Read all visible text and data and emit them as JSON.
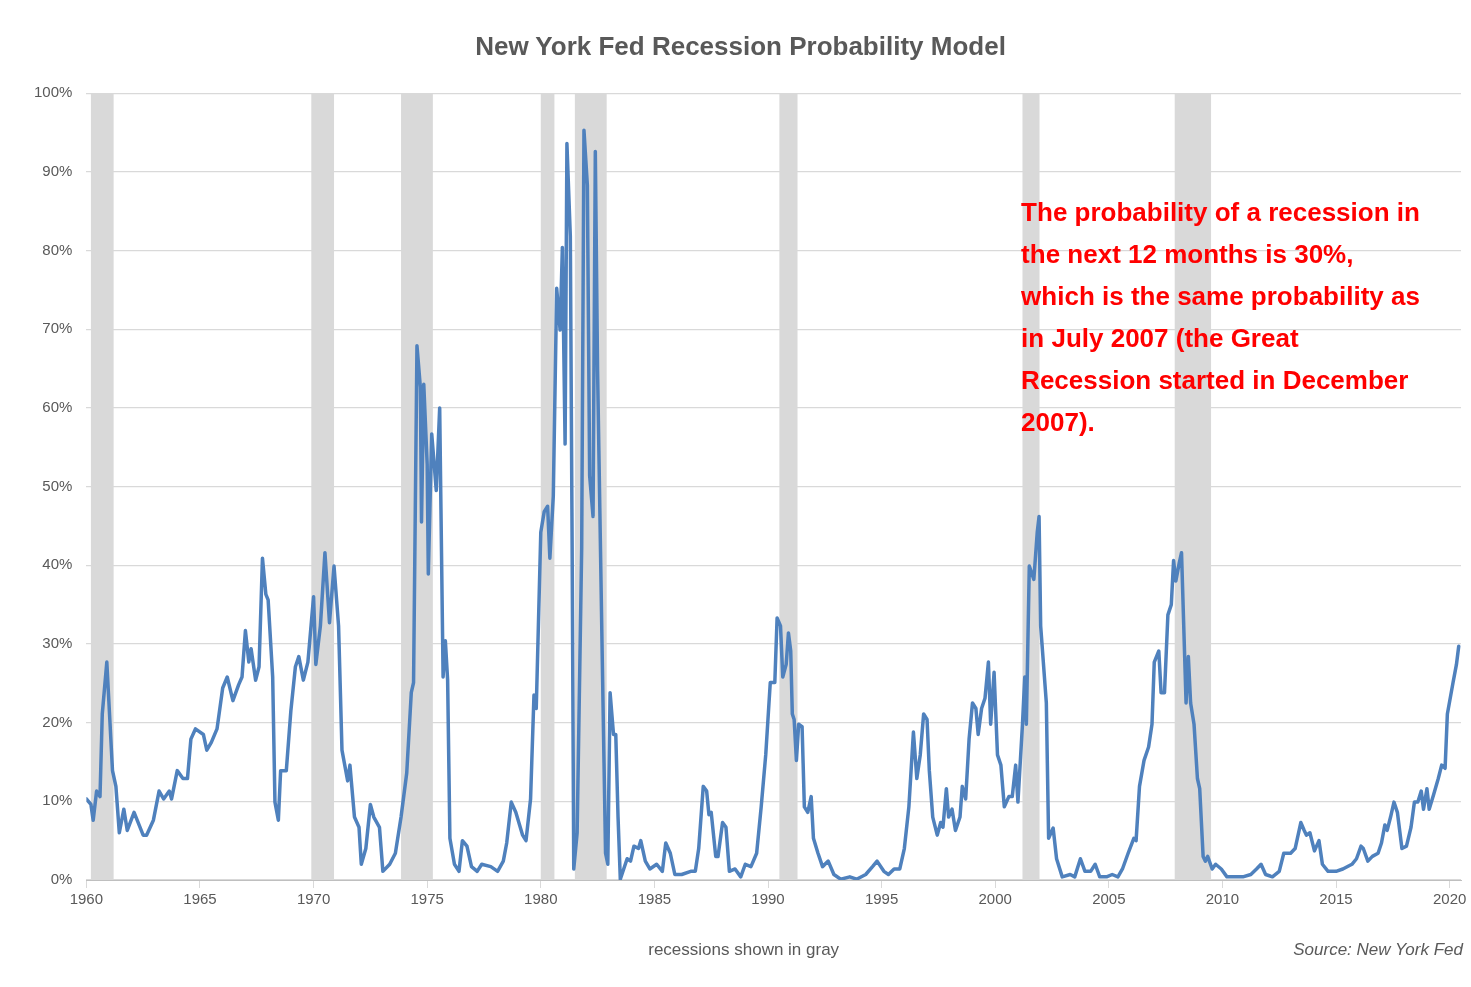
{
  "chart_data": {
    "type": "line",
    "title": "New York Fed Recession Probability Model",
    "xlim": [
      1960,
      2020.5
    ],
    "xticks": [
      1960,
      1965,
      1970,
      1975,
      1980,
      1985,
      1990,
      1995,
      2000,
      2005,
      2010,
      2015,
      2020
    ],
    "ylim": [
      0,
      100
    ],
    "yticks": [
      {
        "value": 0,
        "label": "0%"
      },
      {
        "value": 10,
        "label": "10%"
      },
      {
        "value": 20,
        "label": "20%"
      },
      {
        "value": 30,
        "label": "30%"
      },
      {
        "value": 40,
        "label": "40%"
      },
      {
        "value": 50,
        "label": "50%"
      },
      {
        "value": 60,
        "label": "60%"
      },
      {
        "value": 70,
        "label": "70%"
      },
      {
        "value": 80,
        "label": "80%"
      },
      {
        "value": 90,
        "label": "90%"
      },
      {
        "value": 100,
        "label": "100%"
      }
    ],
    "grid": "y",
    "legend": false,
    "bands": [
      {
        "axis": "x",
        "from": 1960.2,
        "to": 1961.2,
        "color": "#d9d9d9"
      },
      {
        "axis": "x",
        "from": 1969.9,
        "to": 1970.9,
        "color": "#d9d9d9"
      },
      {
        "axis": "x",
        "from": 1973.85,
        "to": 1975.25,
        "color": "#d9d9d9"
      },
      {
        "axis": "x",
        "from": 1980.0,
        "to": 1980.6,
        "color": "#d9d9d9"
      },
      {
        "axis": "x",
        "from": 1981.5,
        "to": 1982.9,
        "color": "#d9d9d9"
      },
      {
        "axis": "x",
        "from": 1990.5,
        "to": 1991.3,
        "color": "#d9d9d9"
      },
      {
        "axis": "x",
        "from": 2001.2,
        "to": 2001.95,
        "color": "#d9d9d9"
      },
      {
        "axis": "x",
        "from": 2007.9,
        "to": 2009.5,
        "color": "#d9d9d9"
      }
    ],
    "annotations": [
      "The probability of a recession in the next 12 months is 30%, which is the same probability as in July 2007 (the Great Recession started in December 2007).",
      "recessions shown in gray",
      "Source: New York Fed"
    ],
    "series": [
      {
        "color": "#4f81bd",
        "x": [
          1960.0,
          1960.2,
          1960.3,
          1960.45,
          1960.6,
          1960.7,
          1960.9,
          1961.15,
          1961.3,
          1961.45,
          1961.65,
          1961.8,
          1962.1,
          1962.5,
          1962.65,
          1962.95,
          1963.2,
          1963.4,
          1963.65,
          1963.75,
          1964.0,
          1964.25,
          1964.45,
          1964.6,
          1964.8,
          1965.15,
          1965.3,
          1965.5,
          1965.75,
          1966.0,
          1966.2,
          1966.45,
          1966.7,
          1966.85,
          1967.0,
          1967.15,
          1967.25,
          1967.45,
          1967.6,
          1967.75,
          1967.9,
          1968.0,
          1968.2,
          1968.3,
          1968.45,
          1968.55,
          1968.8,
          1969.0,
          1969.2,
          1969.35,
          1969.55,
          1969.75,
          1970.0,
          1970.1,
          1970.3,
          1970.5,
          1970.7,
          1970.9,
          1971.1,
          1971.25,
          1971.5,
          1971.6,
          1971.8,
          1972.0,
          1972.1,
          1972.3,
          1972.5,
          1972.65,
          1972.9,
          1973.05,
          1973.35,
          1973.6,
          1973.85,
          1974.1,
          1974.3,
          1974.4,
          1974.55,
          1974.7,
          1974.75,
          1974.85,
          1975.0,
          1975.05,
          1975.2,
          1975.4,
          1975.55,
          1975.7,
          1975.8,
          1975.9,
          1976.0,
          1976.2,
          1976.4,
          1976.55,
          1976.75,
          1976.95,
          1977.2,
          1977.4,
          1977.8,
          1978.1,
          1978.35,
          1978.5,
          1978.7,
          1978.9,
          1979.2,
          1979.35,
          1979.55,
          1979.7,
          1979.8,
          1980.0,
          1980.15,
          1980.3,
          1980.4,
          1980.55,
          1980.7,
          1980.85,
          1980.95,
          1981.07,
          1981.15,
          1981.3,
          1981.38,
          1981.45,
          1981.6,
          1981.8,
          1981.9,
          1982.05,
          1982.15,
          1982.3,
          1982.4,
          1982.5,
          1982.7,
          1982.85,
          1982.95,
          1983.05,
          1983.2,
          1983.3,
          1983.4,
          1983.5,
          1983.8,
          1983.95,
          1984.1,
          1984.3,
          1984.4,
          1984.6,
          1984.8,
          1985.1,
          1985.35,
          1985.5,
          1985.7,
          1985.9,
          1986.2,
          1986.6,
          1986.8,
          1986.95,
          1987.15,
          1987.3,
          1987.4,
          1987.5,
          1987.7,
          1987.8,
          1988.0,
          1988.15,
          1988.3,
          1988.55,
          1988.8,
          1989.0,
          1989.25,
          1989.5,
          1989.7,
          1989.9,
          1990.1,
          1990.3,
          1990.4,
          1990.55,
          1990.65,
          1990.8,
          1990.9,
          1991.0,
          1991.07,
          1991.15,
          1991.25,
          1991.35,
          1991.5,
          1991.6,
          1991.75,
          1991.9,
          1992.0,
          1992.2,
          1992.4,
          1992.65,
          1992.9,
          1993.2,
          1993.6,
          1993.9,
          1994.3,
          1994.6,
          1994.8,
          1995.1,
          1995.3,
          1995.55,
          1995.8,
          1996.0,
          1996.2,
          1996.4,
          1996.55,
          1996.7,
          1996.85,
          1997.0,
          1997.1,
          1997.25,
          1997.45,
          1997.6,
          1997.7,
          1997.85,
          1997.95,
          1998.1,
          1998.25,
          1998.45,
          1998.55,
          1998.7,
          1998.85,
          1999.0,
          1999.15,
          1999.25,
          1999.4,
          1999.55,
          1999.7,
          1999.8,
          1999.95,
          2000.1,
          2000.25,
          2000.4,
          2000.6,
          2000.75,
          2000.9,
          2001.0,
          2001.2,
          2001.3,
          2001.37,
          2001.5,
          2001.7,
          2001.85,
          2001.93,
          2002.0,
          2002.25,
          2002.35,
          2002.55,
          2002.7,
          2002.95,
          2003.3,
          2003.5,
          2003.75,
          2003.95,
          2004.2,
          2004.4,
          2004.6,
          2004.9,
          2005.15,
          2005.4,
          2005.6,
          2005.85,
          2006.1,
          2006.2,
          2006.35,
          2006.55,
          2006.75,
          2006.9,
          2007.0,
          2007.2,
          2007.3,
          2007.45,
          2007.6,
          2007.75,
          2007.85,
          2007.95,
          2008.1,
          2008.2,
          2008.4,
          2008.5,
          2008.6,
          2008.75,
          2008.9,
          2009.0,
          2009.15,
          2009.25,
          2009.35,
          2009.55,
          2009.7,
          2009.95,
          2010.2,
          2010.5,
          2010.9,
          2011.25,
          2011.5,
          2011.7,
          2011.9,
          2012.2,
          2012.5,
          2012.7,
          2013.0,
          2013.2,
          2013.45,
          2013.6,
          2013.7,
          2013.85,
          2014.05,
          2014.25,
          2014.4,
          2014.65,
          2015.0,
          2015.3,
          2015.7,
          2015.9,
          2016.1,
          2016.2,
          2016.4,
          2016.6,
          2016.85,
          2017.0,
          2017.15,
          2017.25,
          2017.4,
          2017.55,
          2017.7,
          2017.9,
          2018.1,
          2018.3,
          2018.45,
          2018.6,
          2018.75,
          2018.85,
          2019.0,
          2019.1,
          2019.3,
          2019.5,
          2019.65,
          2019.8,
          2019.9,
          2020.15,
          2020.3,
          2020.4
        ],
        "values": [
          10.3,
          9.6,
          7.6,
          11.3,
          10.6,
          21.1,
          27.7,
          13.9,
          11.9,
          6.0,
          9.0,
          6.3,
          8.6,
          5.7,
          5.7,
          7.6,
          11.3,
          10.3,
          11.3,
          10.3,
          13.9,
          12.9,
          12.9,
          17.9,
          19.2,
          18.5,
          16.5,
          17.5,
          19.2,
          24.4,
          25.8,
          22.8,
          24.8,
          25.8,
          31.7,
          27.7,
          29.4,
          25.4,
          27.1,
          40.9,
          36.3,
          35.6,
          25.8,
          9.9,
          7.6,
          13.9,
          13.9,
          21.5,
          27.1,
          28.4,
          25.4,
          27.7,
          36.0,
          27.4,
          32.3,
          41.6,
          32.7,
          39.9,
          32.3,
          16.5,
          12.6,
          14.6,
          8.0,
          6.7,
          2.0,
          4.0,
          9.6,
          8.0,
          6.7,
          1.1,
          2.0,
          3.4,
          8.0,
          13.6,
          23.8,
          25.1,
          67.9,
          62.6,
          45.5,
          63.0,
          52.8,
          38.9,
          56.7,
          49.5,
          60.0,
          25.8,
          30.4,
          25.4,
          5.3,
          2.0,
          1.1,
          5.0,
          4.3,
          1.7,
          1.1,
          2.0,
          1.7,
          1.1,
          2.4,
          4.7,
          9.9,
          8.6,
          5.7,
          5.0,
          10.3,
          23.5,
          21.8,
          44.2,
          46.8,
          47.5,
          40.9,
          48.8,
          75.2,
          69.9,
          80.4,
          55.4,
          93.6,
          81.8,
          42.2,
          1.4,
          6.0,
          42.2,
          95.3,
          88.3,
          51.4,
          46.2,
          92.6,
          64.6,
          29.1,
          3.4,
          2.0,
          23.8,
          18.5,
          18.5,
          8.0,
          0.1,
          2.7,
          2.4,
          4.3,
          4.0,
          5.0,
          2.4,
          1.4,
          2.0,
          1.1,
          4.7,
          3.4,
          0.7,
          0.7,
          1.1,
          1.1,
          4.0,
          11.9,
          11.3,
          8.3,
          8.6,
          3.0,
          3.0,
          7.3,
          6.7,
          1.1,
          1.4,
          0.4,
          2.0,
          1.7,
          3.4,
          9.3,
          15.9,
          25.1,
          25.1,
          33.3,
          32.3,
          25.8,
          27.4,
          31.4,
          29.1,
          21.1,
          20.4,
          15.2,
          19.8,
          19.5,
          9.3,
          8.6,
          10.6,
          5.3,
          3.4,
          1.7,
          2.4,
          0.7,
          0.1,
          0.4,
          0.1,
          0.7,
          1.7,
          2.4,
          1.1,
          0.7,
          1.4,
          1.4,
          4.0,
          9.3,
          18.8,
          12.9,
          15.9,
          21.1,
          20.4,
          13.9,
          8.0,
          5.7,
          7.3,
          6.7,
          11.6,
          8.0,
          9.0,
          6.3,
          8.0,
          11.9,
          10.3,
          17.9,
          22.5,
          21.8,
          18.5,
          21.8,
          23.1,
          27.7,
          19.8,
          26.4,
          15.9,
          14.6,
          9.3,
          10.6,
          10.6,
          14.6,
          9.9,
          19.8,
          25.8,
          19.8,
          39.9,
          38.2,
          44.2,
          46.2,
          32.3,
          22.5,
          5.3,
          6.6,
          2.7,
          0.4,
          0.7,
          0.4,
          2.7,
          1.1,
          1.1,
          2.0,
          0.4,
          0.4,
          0.7,
          0.4,
          1.4,
          3.4,
          5.3,
          5.0,
          11.9,
          15.2,
          16.9,
          19.8,
          27.7,
          29.1,
          23.8,
          23.8,
          33.7,
          35.0,
          40.6,
          38.0,
          40.3,
          41.6,
          22.5,
          28.4,
          22.5,
          19.8,
          12.9,
          11.6,
          3.0,
          2.4,
          3.0,
          1.4,
          2.0,
          1.4,
          0.4,
          0.4,
          0.4,
          0.7,
          1.4,
          2.0,
          0.7,
          0.4,
          1.1,
          3.4,
          3.4,
          4.0,
          7.3,
          6.3,
          5.7,
          6.0,
          3.7,
          5.0,
          2.0,
          1.1,
          1.1,
          1.4,
          2.0,
          2.7,
          4.3,
          4.0,
          2.4,
          3.0,
          3.4,
          4.7,
          7.0,
          6.3,
          8.0,
          9.9,
          8.6,
          4.0,
          4.3,
          6.7,
          9.9,
          9.9,
          11.3,
          9.0,
          11.6,
          9.0,
          10.9,
          12.9,
          14.6,
          14.2,
          21.1,
          25.1,
          27.4,
          29.7
        ]
      }
    ]
  }
}
